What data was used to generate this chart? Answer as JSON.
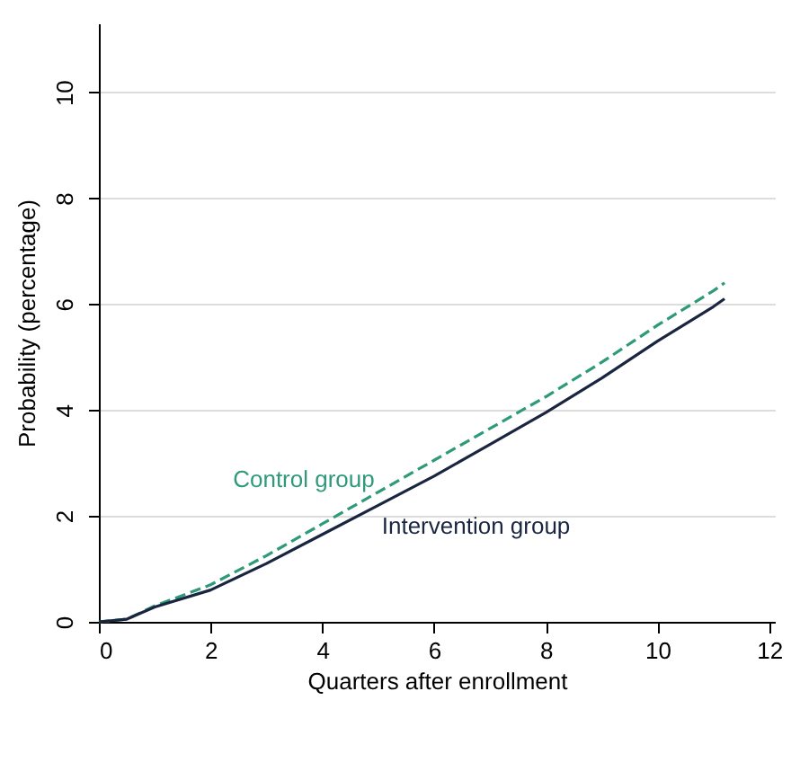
{
  "chart_data": {
    "type": "line",
    "xlabel": "Quarters after enrollment",
    "ylabel": "Probability (percentage)",
    "xlim": [
      0,
      12.1
    ],
    "ylim": [
      0,
      11.3
    ],
    "xticks": [
      0,
      2,
      4,
      6,
      8,
      10,
      12
    ],
    "yticks": [
      0,
      2,
      4,
      6,
      8,
      10
    ],
    "grid": "y",
    "legend": false,
    "marker": "none",
    "series": [
      {
        "name": "Control group",
        "color": "#2e9a7a",
        "line_style": "dashed",
        "x": [
          0,
          0.5,
          1,
          2,
          3,
          4,
          5,
          6,
          7,
          8,
          9,
          10,
          11,
          11.2
        ],
        "values": [
          0,
          0.05,
          0.3,
          0.7,
          1.25,
          1.85,
          2.45,
          3.05,
          3.65,
          4.25,
          4.9,
          5.6,
          6.25,
          6.4
        ]
      },
      {
        "name": "Intervention group",
        "color": "#1a2540",
        "line_style": "solid",
        "x": [
          0,
          0.5,
          1,
          2,
          3,
          4,
          5,
          6,
          7,
          8,
          9,
          10,
          11,
          11.2
        ],
        "values": [
          0,
          0.05,
          0.28,
          0.6,
          1.1,
          1.65,
          2.2,
          2.75,
          3.35,
          3.95,
          4.6,
          5.3,
          5.95,
          6.1
        ]
      }
    ]
  }
}
